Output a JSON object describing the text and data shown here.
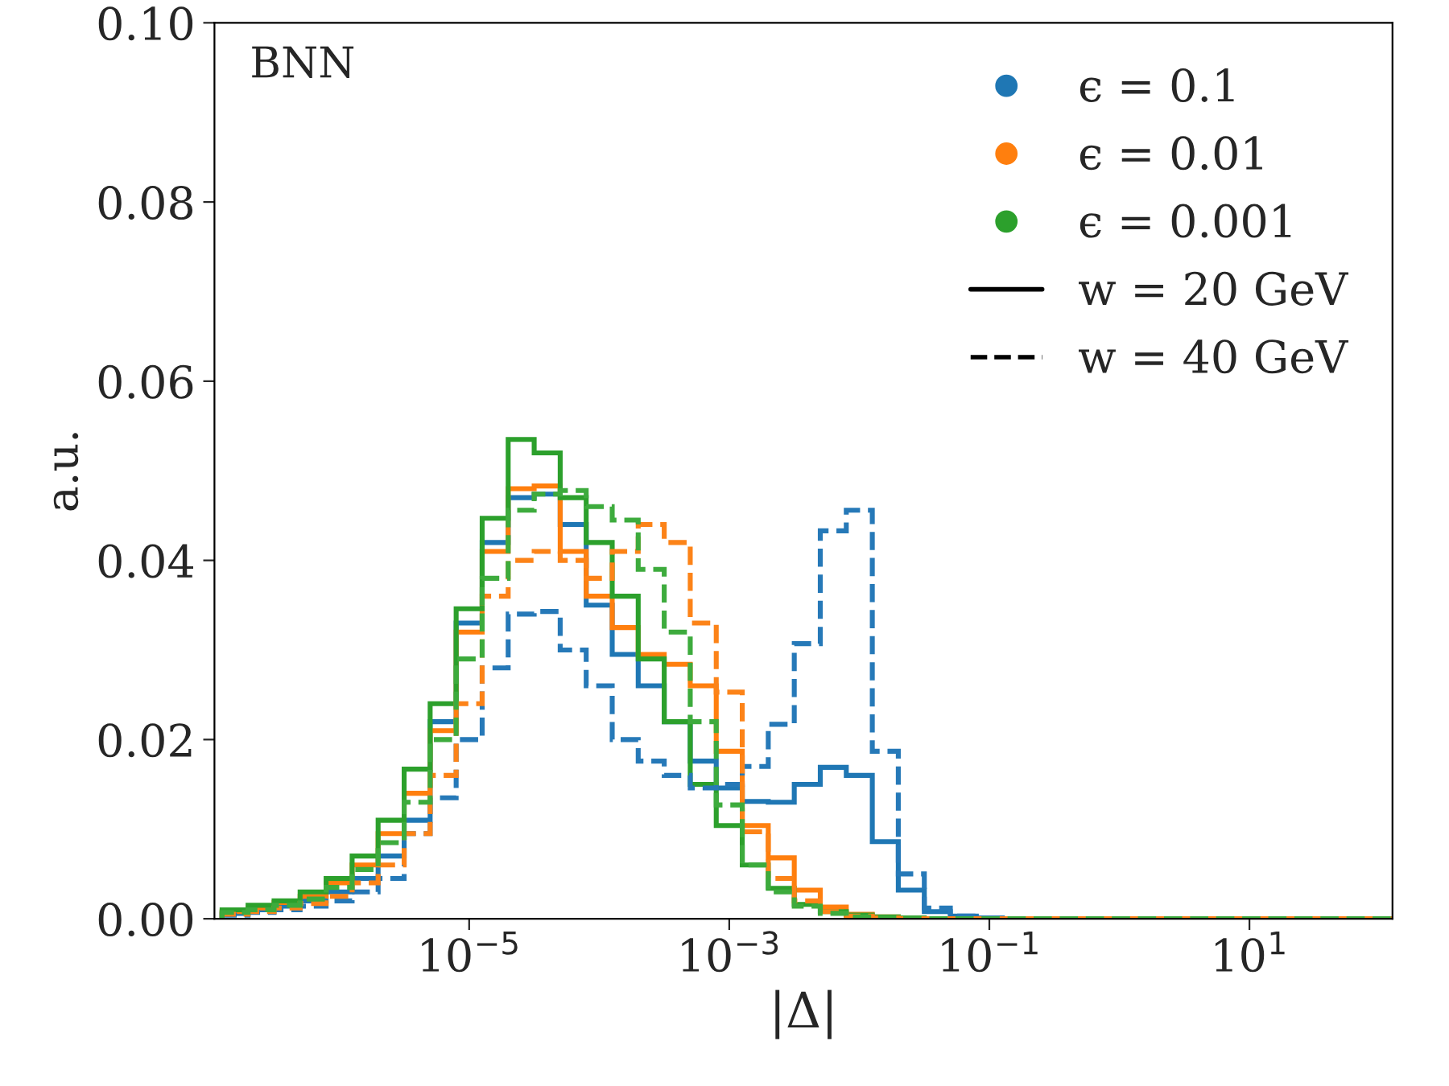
{
  "chart_data": {
    "type": "histogram",
    "xlabel": "|Δ|",
    "ylabel": "a.u.",
    "log": "x",
    "grid": false,
    "legend": "top right",
    "annotations": [
      "BNN",
      "w = 20 GeV",
      "w = 40 GeV"
    ],
    "bins": [
      1.259e-07,
      1.995e-07,
      3.162e-07,
      5.012e-07,
      7.943e-07,
      1.259e-06,
      1.995e-06,
      3.162e-06,
      5.012e-06,
      7.943e-06,
      1.259e-05,
      1.995e-05,
      3.162e-05,
      5.012e-05,
      7.943e-05,
      0.0001259,
      0.0001995,
      0.0003162,
      0.0005012,
      0.0007943,
      0.001259,
      0.001995,
      0.003162,
      0.005012,
      0.007943,
      0.01259,
      0.01995,
      0.03162,
      0.05012,
      0.07943,
      0.1259,
      0.1995,
      0.3162,
      0.5012,
      0.7943,
      1.259,
      1.995,
      3.162,
      5.012,
      7.943,
      12.59,
      19.95,
      31.62,
      50.12,
      79.43,
      125.9
    ],
    "xlim": [
      1.1e-07,
      125.9
    ],
    "xticks": [
      {
        "value": 1e-05,
        "label": "10$^{−5}$"
      },
      {
        "value": 0.001,
        "label": "10$^{−3}$"
      },
      {
        "value": 0.1,
        "label": "10$^{−1}$"
      },
      {
        "value": 10,
        "label": "10$^{1}$"
      }
    ],
    "ylim": [
      0,
      0.1
    ],
    "yticks": [
      {
        "value": 0,
        "label": "0.00"
      },
      {
        "value": 0.02,
        "label": "0.02"
      },
      {
        "value": 0.04,
        "label": "0.04"
      },
      {
        "value": 0.06,
        "label": "0.06"
      },
      {
        "value": 0.08,
        "label": "0.08"
      },
      {
        "value": 0.1,
        "label": "0.10"
      }
    ],
    "series": [
      {
        "name": "ϵ = 0.1",
        "color": "#1f77b4",
        "line_style": "solid",
        "values": [
          0.0006,
          0.001,
          0.0014,
          0.002,
          0.003,
          0.0045,
          0.007,
          0.011,
          0.022,
          0.033,
          0.042,
          0.047,
          0.0474,
          0.044,
          0.035,
          0.0295,
          0.026,
          0.022,
          0.0176,
          0.0146,
          0.0131,
          0.013,
          0.015,
          0.0169,
          0.016,
          0.0086,
          0.0032,
          0.0008,
          0.0003,
          0.0001,
          0,
          0,
          0,
          0,
          0,
          0,
          0,
          0,
          0,
          0,
          0,
          0,
          0,
          0,
          0
        ]
      },
      {
        "name": "ϵ = 0.01",
        "color": "#ff7f0e",
        "line_style": "solid",
        "values": [
          0.0008,
          0.0012,
          0.0018,
          0.0025,
          0.004,
          0.006,
          0.0095,
          0.014,
          0.021,
          0.032,
          0.041,
          0.048,
          0.0483,
          0.041,
          0.036,
          0.0325,
          0.0295,
          0.0284,
          0.026,
          0.0187,
          0.0104,
          0.0068,
          0.0032,
          0.0013,
          0.0005,
          0.0002,
          0,
          0,
          0,
          0,
          0,
          0,
          0,
          0,
          0,
          0,
          0,
          0,
          0,
          0,
          0,
          0,
          0,
          0,
          0
        ]
      },
      {
        "name": "ϵ = 0.001",
        "color": "#2ca02c",
        "line_style": "solid",
        "values": [
          0.001,
          0.0015,
          0.002,
          0.003,
          0.0045,
          0.007,
          0.011,
          0.0167,
          0.024,
          0.0346,
          0.0447,
          0.0535,
          0.052,
          0.047,
          0.042,
          0.036,
          0.029,
          0.022,
          0.015,
          0.0104,
          0.006,
          0.0034,
          0.0016,
          0.0008,
          0.0004,
          0.0002,
          0.0001,
          0,
          0,
          0,
          0,
          0,
          0,
          0,
          0,
          0,
          0,
          0,
          0,
          0,
          0,
          0,
          0,
          0,
          0
        ]
      },
      {
        "color": "#2679b8",
        "line_style": "dashed",
        "values": [
          0.0004,
          0.0007,
          0.001,
          0.0014,
          0.002,
          0.003,
          0.0045,
          0.0095,
          0.0135,
          0.02,
          0.028,
          0.034,
          0.0343,
          0.03,
          0.026,
          0.02,
          0.0176,
          0.016,
          0.0146,
          0.015,
          0.017,
          0.0217,
          0.0307,
          0.0433,
          0.0456,
          0.0187,
          0.005,
          0.0012,
          0.0003,
          0.0001,
          0,
          0,
          0,
          0,
          0,
          0,
          0,
          0,
          0,
          0,
          0,
          0,
          0,
          0,
          0
        ]
      },
      {
        "color": "#fc8318",
        "line_style": "dashed",
        "values": [
          0.0005,
          0.0008,
          0.0012,
          0.0017,
          0.0025,
          0.004,
          0.006,
          0.0095,
          0.016,
          0.024,
          0.036,
          0.04,
          0.041,
          0.04,
          0.038,
          0.041,
          0.044,
          0.042,
          0.033,
          0.0253,
          0.0097,
          0.0045,
          0.002,
          0.0008,
          0.0003,
          0.0001,
          0,
          0,
          0,
          0,
          0,
          0,
          0,
          0,
          0,
          0,
          0,
          0,
          0,
          0,
          0,
          0,
          0,
          0,
          0
        ]
      },
      {
        "color": "#3dab3d",
        "line_style": "dashed",
        "values": [
          0.0007,
          0.001,
          0.0015,
          0.0022,
          0.0035,
          0.0055,
          0.0085,
          0.013,
          0.02,
          0.029,
          0.038,
          0.0456,
          0.0474,
          0.0478,
          0.046,
          0.0445,
          0.039,
          0.032,
          0.022,
          0.0127,
          0.006,
          0.003,
          0.0014,
          0.0006,
          0.0002,
          0.0001,
          0,
          0,
          0,
          0,
          0,
          0,
          0,
          0,
          0,
          0,
          0,
          0,
          0,
          0,
          0,
          0,
          0,
          0,
          0
        ]
      }
    ]
  }
}
